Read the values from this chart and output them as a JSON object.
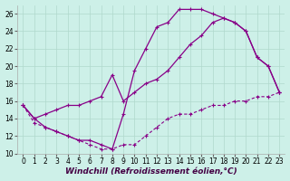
{
  "xlabel": "Windchill (Refroidissement éolien,°C)",
  "background_color": "#cdf0e8",
  "line_color": "#880088",
  "xlim": [
    -0.5,
    23.5
  ],
  "ylim": [
    10,
    27
  ],
  "yticks": [
    10,
    12,
    14,
    16,
    18,
    20,
    22,
    24,
    26
  ],
  "xticks": [
    0,
    1,
    2,
    3,
    4,
    5,
    6,
    7,
    8,
    9,
    10,
    11,
    12,
    13,
    14,
    15,
    16,
    17,
    18,
    19,
    20,
    21,
    22,
    23
  ],
  "series1_x": [
    0,
    1,
    2,
    3,
    4,
    5,
    6,
    7,
    8,
    9,
    10,
    11,
    12,
    13,
    14,
    15,
    16,
    17,
    18,
    19,
    20,
    21,
    22,
    23
  ],
  "series1_y": [
    15.5,
    14.0,
    13.0,
    12.5,
    12.0,
    11.5,
    11.5,
    11.0,
    10.5,
    14.5,
    19.5,
    22.0,
    24.5,
    25.0,
    26.5,
    26.5,
    26.5,
    26.0,
    25.5,
    25.0,
    24.0,
    21.0,
    20.0,
    17.0
  ],
  "series2_x": [
    0,
    1,
    2,
    3,
    4,
    5,
    6,
    7,
    8,
    9,
    10,
    11,
    12,
    13,
    14,
    15,
    16,
    17,
    18,
    19,
    20,
    21,
    22,
    23
  ],
  "series2_y": [
    15.5,
    13.5,
    13.0,
    12.5,
    12.0,
    11.5,
    11.0,
    10.5,
    10.5,
    11.0,
    11.0,
    12.0,
    13.0,
    14.0,
    14.5,
    14.5,
    15.0,
    15.5,
    15.5,
    16.0,
    16.0,
    16.5,
    16.5,
    17.0
  ],
  "series3_x": [
    0,
    1,
    2,
    3,
    4,
    5,
    6,
    7,
    8,
    9,
    10,
    11,
    12,
    13,
    14,
    15,
    16,
    17,
    18,
    19,
    20,
    21,
    22,
    23
  ],
  "series3_y": [
    15.5,
    14.0,
    14.5,
    15.0,
    15.5,
    15.5,
    16.0,
    16.5,
    19.0,
    16.0,
    17.0,
    18.0,
    18.5,
    19.5,
    21.0,
    22.5,
    23.5,
    25.0,
    25.5,
    25.0,
    24.0,
    21.0,
    20.0,
    17.0
  ],
  "grid_color": "#b0d8cc",
  "tick_fontsize": 5.5,
  "xlabel_fontsize": 6.5
}
